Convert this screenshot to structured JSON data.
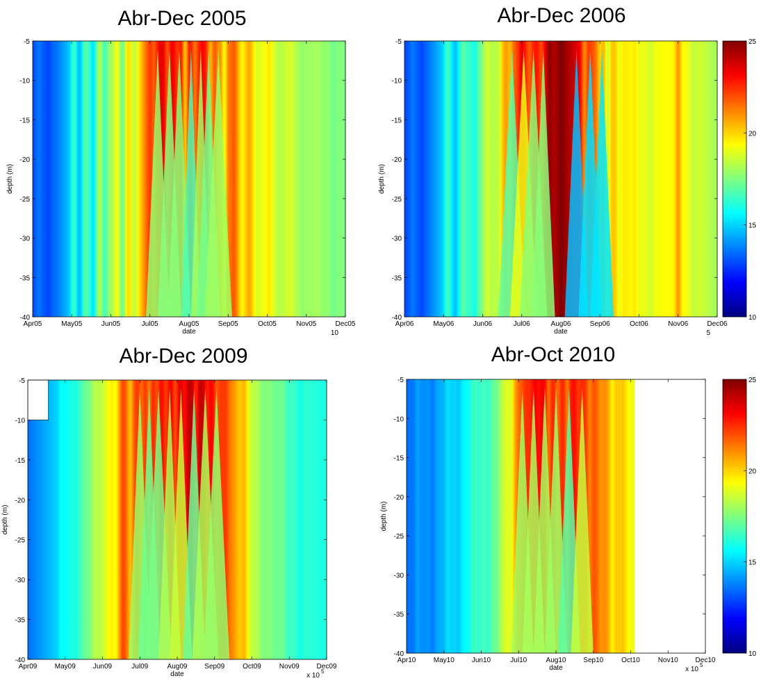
{
  "colorbar": {
    "colormap": "jet",
    "range": [
      10,
      25
    ],
    "ticks": [
      "10",
      "15",
      "20",
      "25"
    ],
    "colors": [
      "#00008f",
      "#0000ff",
      "#0080ff",
      "#00ffff",
      "#80ff80",
      "#ffff00",
      "#ff8000",
      "#ff0000",
      "#800000"
    ]
  },
  "chart_data": [
    {
      "type": "heatmap",
      "title": "Abr-Dec 2005",
      "xlabel": "date",
      "ylabel": "depth (m)",
      "x_tick_labels": [
        "Apr05",
        "May05",
        "Jun05",
        "Jul05",
        "Aug05",
        "Sep05",
        "Oct05",
        "Nov05",
        "Dec05"
      ],
      "x_exponent": "10",
      "y_tick_labels": [
        "-5",
        "-10",
        "-15",
        "-20",
        "-25",
        "-30",
        "-35",
        "-40"
      ],
      "ylim": [
        -40,
        -5
      ],
      "data_end_month": 8,
      "colorbar": false,
      "profile": [
        [
          0,
          13
        ],
        [
          0.6,
          13.5
        ],
        [
          1,
          15
        ],
        [
          1.5,
          16.5
        ],
        [
          2,
          18
        ],
        [
          2.7,
          19.5
        ],
        [
          3,
          22.5
        ],
        [
          3.5,
          23.5
        ],
        [
          4,
          23
        ],
        [
          4.5,
          22.5
        ],
        [
          5,
          21.5
        ],
        [
          5.5,
          20
        ],
        [
          6,
          19
        ],
        [
          7,
          18
        ],
        [
          8,
          17.5
        ]
      ],
      "stripes": [
        [
          0.15,
          0.5
        ],
        [
          0.4,
          -0.5
        ],
        [
          1.05,
          1.5
        ],
        [
          1.2,
          -1
        ],
        [
          1.35,
          1
        ],
        [
          1.55,
          -1.5
        ],
        [
          1.7,
          1.2
        ],
        [
          1.85,
          -1
        ],
        [
          2.15,
          1
        ],
        [
          2.3,
          -1.5
        ],
        [
          2.45,
          1
        ],
        [
          2.6,
          -1
        ],
        [
          3.1,
          -1
        ],
        [
          3.3,
          0.5
        ],
        [
          3.45,
          -1.5
        ],
        [
          3.7,
          -1
        ],
        [
          3.9,
          -3
        ],
        [
          4.15,
          -1.5
        ],
        [
          4.35,
          0.5
        ],
        [
          4.55,
          -2
        ],
        [
          4.75,
          -1
        ],
        [
          4.9,
          -2.5
        ],
        [
          5.15,
          0.8
        ],
        [
          5.35,
          -1
        ],
        [
          5.55,
          0.8
        ],
        [
          5.75,
          -0.8
        ],
        [
          6.05,
          0.8
        ],
        [
          6.3,
          -0.5
        ],
        [
          6.6,
          0.5
        ],
        [
          6.9,
          -0.4
        ],
        [
          7.3,
          0.3
        ],
        [
          7.7,
          -0.4
        ]
      ],
      "wedges": [
        [
          3.2,
          0.3,
          -5
        ],
        [
          3.5,
          0.3,
          -5
        ],
        [
          3.75,
          0.3,
          -5
        ],
        [
          4.05,
          0.25,
          -6
        ],
        [
          4.3,
          0.25,
          -5
        ],
        [
          4.5,
          0.3,
          -4
        ],
        [
          4.75,
          0.35,
          -3
        ]
      ]
    },
    {
      "type": "heatmap",
      "title": "Abr-Dec 2006",
      "xlabel": "date",
      "ylabel": "depth (m)",
      "x_tick_labels": [
        "Apr06",
        "May06",
        "Jun06",
        "Jul06",
        "Aug06",
        "Sep06",
        "Oct06",
        "Nov06",
        "Dec06"
      ],
      "x_exponent": "5",
      "y_tick_labels": [
        "-5",
        "-10",
        "-15",
        "-20",
        "-25",
        "-30",
        "-35",
        "-40"
      ],
      "ylim": [
        -40,
        -5
      ],
      "data_end_month": 8,
      "colorbar": true,
      "profile": [
        [
          0,
          13
        ],
        [
          0.6,
          13.5
        ],
        [
          1,
          15
        ],
        [
          1.7,
          16.5
        ],
        [
          2.3,
          18.5
        ],
        [
          2.6,
          21
        ],
        [
          3,
          22.5
        ],
        [
          3.5,
          23
        ],
        [
          4,
          25
        ],
        [
          4.3,
          24
        ],
        [
          4.6,
          23
        ],
        [
          5,
          21
        ],
        [
          5.5,
          20
        ],
        [
          6,
          19
        ],
        [
          7,
          19.5
        ],
        [
          8,
          18
        ]
      ],
      "stripes": [
        [
          0.2,
          0.5
        ],
        [
          0.45,
          -0.5
        ],
        [
          1.1,
          1.5
        ],
        [
          1.3,
          -1
        ],
        [
          1.5,
          1
        ],
        [
          1.8,
          -1
        ],
        [
          2.1,
          1
        ],
        [
          2.4,
          -1
        ],
        [
          2.7,
          -1
        ],
        [
          3.0,
          1
        ],
        [
          3.2,
          -1
        ],
        [
          3.5,
          -1
        ],
        [
          3.7,
          1
        ],
        [
          4.6,
          -2
        ],
        [
          5.0,
          -1
        ],
        [
          5.2,
          -2
        ],
        [
          5.5,
          -1
        ],
        [
          5.9,
          0.5
        ],
        [
          6.3,
          -0.5
        ],
        [
          7.0,
          1.5
        ],
        [
          7.4,
          -0.5
        ]
      ],
      "wedges": [
        [
          2.75,
          0.35,
          -4
        ],
        [
          3.05,
          0.35,
          -4
        ],
        [
          3.3,
          0.35,
          -5
        ],
        [
          3.55,
          0.3,
          -5
        ],
        [
          4.4,
          0.3,
          -9
        ],
        [
          4.75,
          0.3,
          -7
        ],
        [
          5.05,
          0.3,
          -5
        ]
      ]
    },
    {
      "type": "heatmap",
      "title": "Abr-Dec 2009",
      "xlabel": "date",
      "ylabel": "depth (m)",
      "x_tick_labels": [
        "Apr09",
        "May09",
        "Jun09",
        "Jul09",
        "Aug09",
        "Sep09",
        "Oct09",
        "Nov09",
        "Dec09"
      ],
      "x_exponent": "x 10",
      "x_exponent_power": "5",
      "y_tick_labels": [
        "-5",
        "-10",
        "-15",
        "-20",
        "-25",
        "-30",
        "-35",
        "-40"
      ],
      "ylim": [
        -40,
        -5
      ],
      "data_end_month": 8,
      "colorbar": false,
      "blank_box": [
        0,
        0.55,
        -5,
        -10
      ],
      "profile": [
        [
          0,
          13.5
        ],
        [
          0.8,
          15
        ],
        [
          1.5,
          17
        ],
        [
          2,
          18.5
        ],
        [
          2.5,
          21
        ],
        [
          3,
          22.5
        ],
        [
          3.5,
          23
        ],
        [
          4,
          23.5
        ],
        [
          4.5,
          24.5
        ],
        [
          5,
          23
        ],
        [
          5.5,
          21
        ],
        [
          6,
          18.5
        ],
        [
          7,
          16.5
        ],
        [
          8,
          16
        ]
      ],
      "stripes": [
        [
          0.9,
          0.5
        ],
        [
          1.3,
          -0.5
        ],
        [
          1.8,
          0.5
        ],
        [
          2.35,
          -1
        ],
        [
          2.55,
          1
        ],
        [
          2.75,
          -1.5
        ],
        [
          3.05,
          -1
        ],
        [
          3.25,
          -1.5
        ],
        [
          3.45,
          -1
        ],
        [
          3.7,
          -1
        ],
        [
          3.95,
          -1.5
        ],
        [
          4.2,
          -1
        ],
        [
          4.5,
          -2
        ],
        [
          4.8,
          -1
        ],
        [
          5.05,
          -1
        ],
        [
          5.3,
          0.5
        ],
        [
          5.8,
          1
        ],
        [
          6.3,
          -0.5
        ],
        [
          6.8,
          0.5
        ],
        [
          7.3,
          -0.5
        ]
      ],
      "wedges": [
        [
          3.0,
          0.3,
          -4
        ],
        [
          3.25,
          0.3,
          -4
        ],
        [
          3.5,
          0.35,
          -5
        ],
        [
          3.8,
          0.3,
          -5
        ],
        [
          4.1,
          0.3,
          -5
        ],
        [
          4.45,
          0.3,
          -6
        ],
        [
          4.75,
          0.35,
          -5
        ],
        [
          5.05,
          0.35,
          -4
        ]
      ]
    },
    {
      "type": "heatmap",
      "title": "Abr-Oct 2010",
      "xlabel": "date",
      "ylabel": "depth (m)",
      "x_tick_labels": [
        "Apr10",
        "May10",
        "Jun10",
        "Jul10",
        "Aug10",
        "Sep10",
        "Oct10",
        "Nov10",
        "Dec10"
      ],
      "x_exponent": "x 10",
      "x_exponent_power": "5",
      "y_tick_labels": [
        "-5",
        "-10",
        "-15",
        "-20",
        "-25",
        "-30",
        "-35",
        "-40"
      ],
      "ylim": [
        -40,
        -5
      ],
      "data_end_month": 6.1,
      "colorbar": true,
      "profile": [
        [
          0,
          13.5
        ],
        [
          1,
          14.5
        ],
        [
          1.5,
          15.5
        ],
        [
          2,
          16.5
        ],
        [
          2.5,
          17.5
        ],
        [
          3,
          21.5
        ],
        [
          3.3,
          23
        ],
        [
          3.6,
          23.5
        ],
        [
          4,
          22.5
        ],
        [
          4.5,
          23
        ],
        [
          5,
          22
        ],
        [
          5.5,
          20.5
        ],
        [
          6.1,
          19
        ]
      ],
      "stripes": [
        [
          0.3,
          0.5
        ],
        [
          0.7,
          -0.5
        ],
        [
          1.1,
          0.5
        ],
        [
          1.4,
          -0.5
        ],
        [
          1.8,
          0.5
        ],
        [
          2.2,
          -0.5
        ],
        [
          2.55,
          0.5
        ],
        [
          2.8,
          -1
        ],
        [
          3.3,
          -0.5
        ],
        [
          3.55,
          -0.5
        ],
        [
          3.8,
          -1.5
        ],
        [
          4.05,
          -1
        ],
        [
          4.3,
          -1.5
        ],
        [
          4.6,
          -0.5
        ],
        [
          4.9,
          -1
        ],
        [
          5.2,
          -0.5
        ],
        [
          5.5,
          -1
        ],
        [
          5.8,
          0.5
        ]
      ],
      "wedges": [
        [
          3.1,
          0.3,
          -4
        ],
        [
          3.4,
          0.3,
          -5
        ],
        [
          3.7,
          0.3,
          -5
        ],
        [
          4.0,
          0.3,
          -4
        ],
        [
          4.35,
          0.3,
          -5
        ],
        [
          4.7,
          0.3,
          -4
        ]
      ]
    }
  ]
}
